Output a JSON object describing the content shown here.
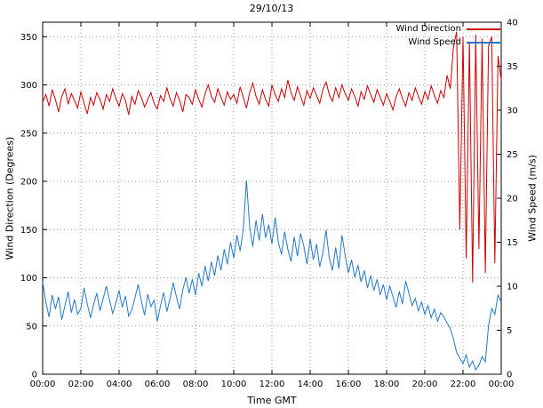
{
  "chart_data": {
    "type": "line",
    "title": "29/10/13",
    "xlabel": "Time GMT",
    "ylabel": "Wind Direction (Degrees)",
    "y2label": "Wind Speed (m/s)",
    "grid": true,
    "legend_position": "top-right",
    "x_range_minutes": [
      0,
      1440
    ],
    "sample_interval_minutes": 10,
    "x_ticks_minutes": [
      0,
      120,
      240,
      360,
      480,
      600,
      720,
      840,
      960,
      1080,
      1200,
      1320,
      1440
    ],
    "x_tick_labels": [
      "00:00",
      "02:00",
      "04:00",
      "06:00",
      "08:00",
      "10:00",
      "12:00",
      "14:00",
      "16:00",
      "18:00",
      "20:00",
      "22:00",
      "00:00"
    ],
    "y_left": {
      "min": 0,
      "max": 365,
      "ticks": [
        0,
        50,
        100,
        150,
        200,
        250,
        300,
        350
      ]
    },
    "y_right": {
      "min": 0,
      "max": 40,
      "ticks": [
        0,
        5,
        10,
        15,
        20,
        25,
        30,
        35,
        40
      ]
    },
    "series": [
      {
        "name": "Wind Direction",
        "axis": "left",
        "color": "#cc0000",
        "values": [
          282,
          290,
          278,
          295,
          285,
          272,
          288,
          296,
          280,
          291,
          284,
          276,
          293,
          281,
          270,
          287,
          279,
          292,
          285,
          275,
          290,
          283,
          296,
          286,
          278,
          291,
          284,
          269,
          288,
          280,
          294,
          287,
          277,
          285,
          292,
          281,
          275,
          289,
          283,
          297,
          286,
          278,
          292,
          284,
          272,
          290,
          287,
          280,
          295,
          285,
          277,
          291,
          300,
          288,
          282,
          296,
          287,
          279,
          293,
          285,
          290,
          281,
          298,
          287,
          276,
          292,
          302,
          288,
          280,
          295,
          285,
          278,
          300,
          290,
          283,
          296,
          287,
          305,
          292,
          284,
          298,
          288,
          279,
          294,
          286,
          297,
          289,
          281,
          295,
          303,
          290,
          283,
          297,
          287,
          300,
          291,
          284,
          296,
          288,
          278,
          293,
          285,
          299,
          290,
          282,
          295,
          287,
          279,
          291,
          283,
          274,
          288,
          296,
          286,
          278,
          292,
          284,
          297,
          288,
          280,
          293,
          285,
          299,
          289,
          281,
          294,
          287,
          310,
          296,
          340,
          355,
          150,
          350,
          120,
          345,
          95,
          352,
          130,
          348,
          105,
          340,
          350,
          115,
          330,
          305
        ]
      },
      {
        "name": "Wind Speed",
        "axis": "right",
        "color": "#2478c8",
        "values": [
          10.5,
          8.2,
          6.5,
          9.0,
          7.4,
          8.8,
          6.2,
          7.8,
          9.4,
          7.0,
          8.5,
          6.8,
          7.5,
          9.8,
          8.0,
          6.4,
          7.9,
          9.2,
          7.2,
          8.6,
          10.0,
          8.4,
          6.9,
          8.1,
          9.5,
          7.6,
          8.9,
          6.6,
          7.3,
          8.7,
          10.2,
          8.3,
          6.7,
          9.1,
          7.7,
          8.4,
          6.0,
          7.8,
          9.3,
          7.1,
          8.6,
          10.4,
          8.8,
          7.4,
          9.6,
          11.0,
          9.2,
          10.8,
          9.0,
          11.5,
          10.0,
          12.3,
          10.6,
          12.8,
          11.2,
          13.5,
          11.8,
          14.2,
          12.5,
          15.0,
          13.2,
          15.8,
          14.0,
          16.5,
          22.0,
          16.8,
          14.5,
          17.5,
          15.2,
          18.2,
          15.5,
          17.0,
          14.8,
          17.8,
          15.0,
          13.6,
          16.2,
          14.2,
          12.8,
          15.6,
          13.4,
          16.0,
          14.6,
          12.5,
          15.4,
          13.0,
          14.8,
          12.2,
          13.8,
          16.4,
          13.2,
          11.8,
          14.4,
          12.0,
          15.8,
          13.5,
          11.5,
          13.0,
          11.0,
          12.4,
          10.5,
          11.8,
          9.8,
          11.2,
          9.5,
          10.8,
          9.0,
          10.2,
          8.5,
          10.0,
          8.8,
          7.6,
          9.4,
          8.0,
          10.6,
          9.2,
          7.8,
          8.6,
          7.2,
          8.2,
          6.8,
          7.8,
          6.4,
          7.4,
          6.0,
          7.0,
          6.5,
          5.8,
          5.2,
          4.0,
          2.5,
          1.8,
          1.2,
          2.2,
          0.8,
          1.5,
          0.5,
          1.0,
          2.0,
          1.4,
          5.5,
          7.5,
          6.8,
          9.0,
          8.2
        ]
      }
    ]
  }
}
